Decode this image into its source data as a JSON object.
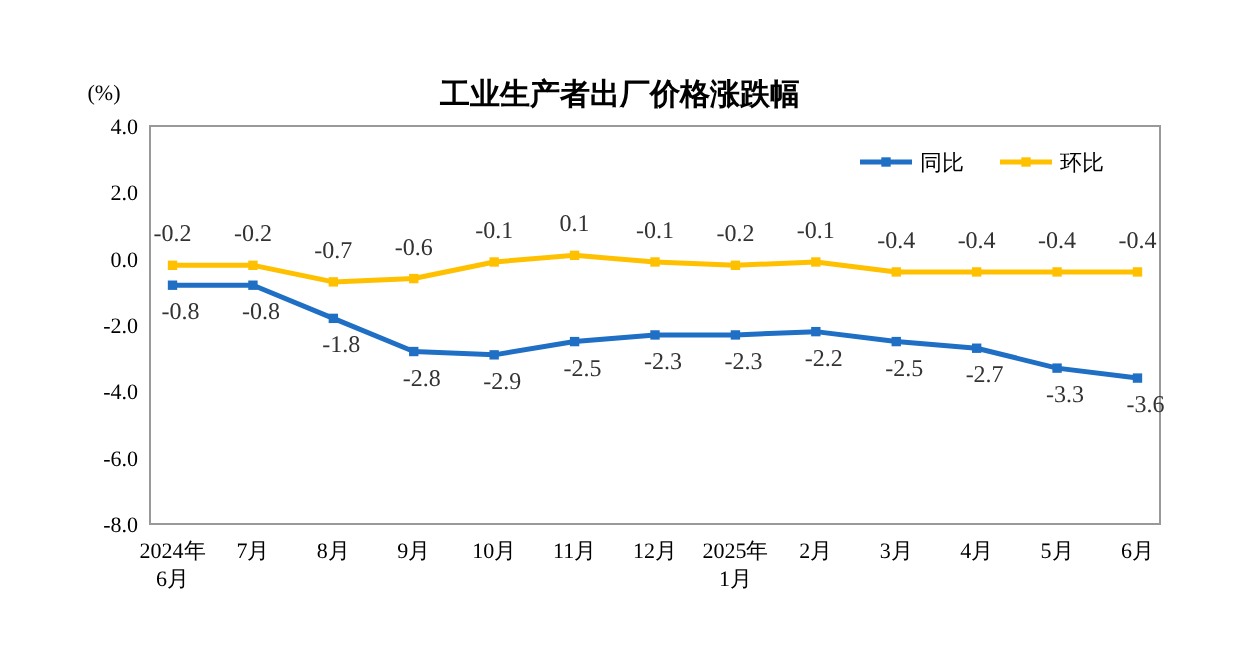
{
  "chart_data": {
    "type": "line",
    "title": "工业生产者出厂价格涨跌幅",
    "ylabel": "(%)",
    "categories": [
      "2024年\n6月",
      "7月",
      "8月",
      "9月",
      "10月",
      "11月",
      "12月",
      "2025年\n1月",
      "2月",
      "3月",
      "4月",
      "5月",
      "6月"
    ],
    "series": [
      {
        "name": "同比",
        "color": "#1f6fc5",
        "values": [
          -0.8,
          -0.8,
          -1.8,
          -2.8,
          -2.9,
          -2.5,
          -2.3,
          -2.3,
          -2.2,
          -2.5,
          -2.7,
          -3.3,
          -3.6
        ]
      },
      {
        "name": "环比",
        "color": "#ffc000",
        "values": [
          -0.2,
          -0.2,
          -0.7,
          -0.6,
          -0.1,
          0.1,
          -0.1,
          -0.2,
          -0.1,
          -0.4,
          -0.4,
          -0.4,
          -0.4
        ]
      }
    ],
    "ylim": [
      -8,
      4
    ],
    "yticks": [
      {
        "value": 4,
        "label": "4.0"
      },
      {
        "value": 2,
        "label": "2.0"
      },
      {
        "value": 0,
        "label": "0.0"
      },
      {
        "value": -2,
        "label": "-2.0"
      },
      {
        "value": -4,
        "label": "-4.0"
      },
      {
        "value": -6,
        "label": "-6.0"
      },
      {
        "value": -8,
        "label": "-8.0"
      }
    ],
    "grid": false,
    "legend": "top right",
    "marker": "square",
    "line_style": "solid",
    "data_labels": true
  }
}
